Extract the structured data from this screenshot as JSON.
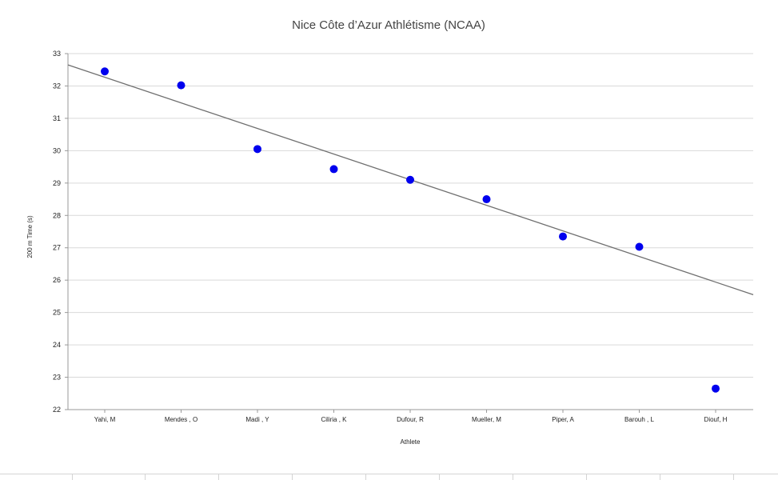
{
  "chart_data": {
    "type": "scatter",
    "title": "Nice Côte d’Azur Athlétisme (NCAA)",
    "xlabel": "Athlete",
    "ylabel": "200 m Time (s)",
    "categories": [
      "Yahi, M",
      "Mendes , O",
      "Madi , Y",
      "Ciliria , K",
      "Dufour, R",
      "Mueller, M",
      "Piper, A",
      "Barouh , L",
      "Diouf, H"
    ],
    "series": [
      {
        "values": [
          32.45,
          32.02,
          30.05,
          29.43,
          29.1,
          28.5,
          27.35,
          27.03,
          22.65
        ],
        "color": "#0000ee"
      }
    ],
    "trendline": {
      "type": "linear",
      "start_value": 32.65,
      "end_value": 25.55,
      "color": "#6f6f6f"
    },
    "ylim": [
      22,
      33
    ],
    "yticks": [
      22,
      23,
      24,
      25,
      26,
      27,
      28,
      29,
      30,
      31,
      32,
      33
    ],
    "grid": true,
    "legend": "none"
  }
}
